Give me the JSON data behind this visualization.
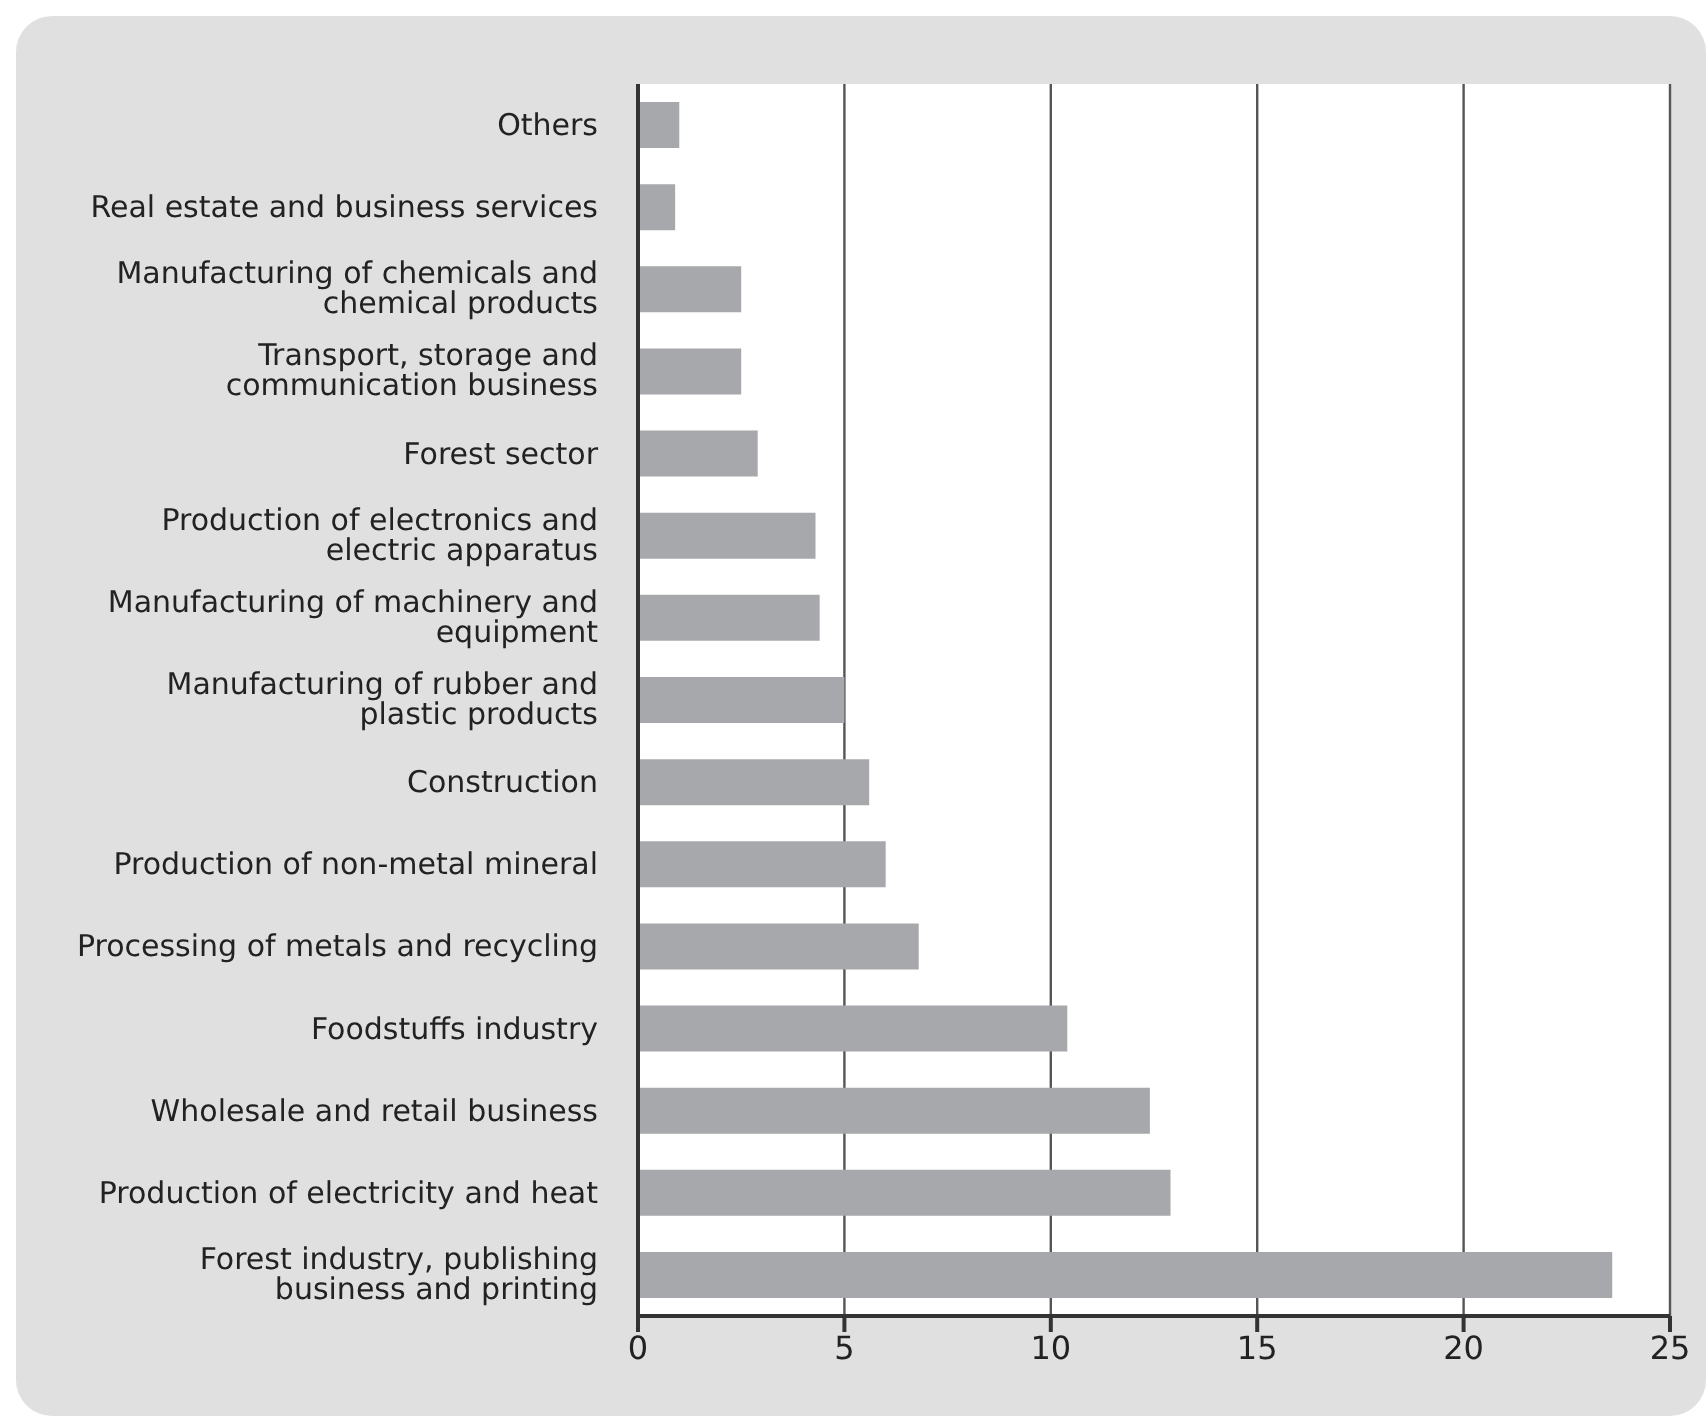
{
  "chart_data": {
    "type": "bar",
    "orientation": "horizontal",
    "categories": [
      "Others",
      "Real estate and business services",
      "Manufacturing of chemicals and chemical products",
      "Transport, storage and communication business",
      "Forest sector",
      "Production of electronics and electric apparatus",
      "Manufacturing of machinery and equipment",
      "Manufacturing of rubber and plastic products",
      "Construction",
      "Production of non-metal mineral",
      "Processing of metals and recycling",
      "Foodstuffs industry",
      "Wholesale and retail business",
      "Production of electricity and heat",
      "Forest industry, publishing business and printing"
    ],
    "values": [
      1.0,
      0.9,
      2.5,
      2.5,
      2.9,
      4.3,
      4.4,
      5.0,
      5.6,
      6.0,
      6.8,
      10.4,
      12.4,
      12.9,
      23.6
    ],
    "color": "#a7a8ab",
    "xlim": [
      0,
      25
    ],
    "xticks": [
      0,
      5,
      10,
      15,
      20,
      25
    ],
    "grid": "x",
    "legend": false
  }
}
